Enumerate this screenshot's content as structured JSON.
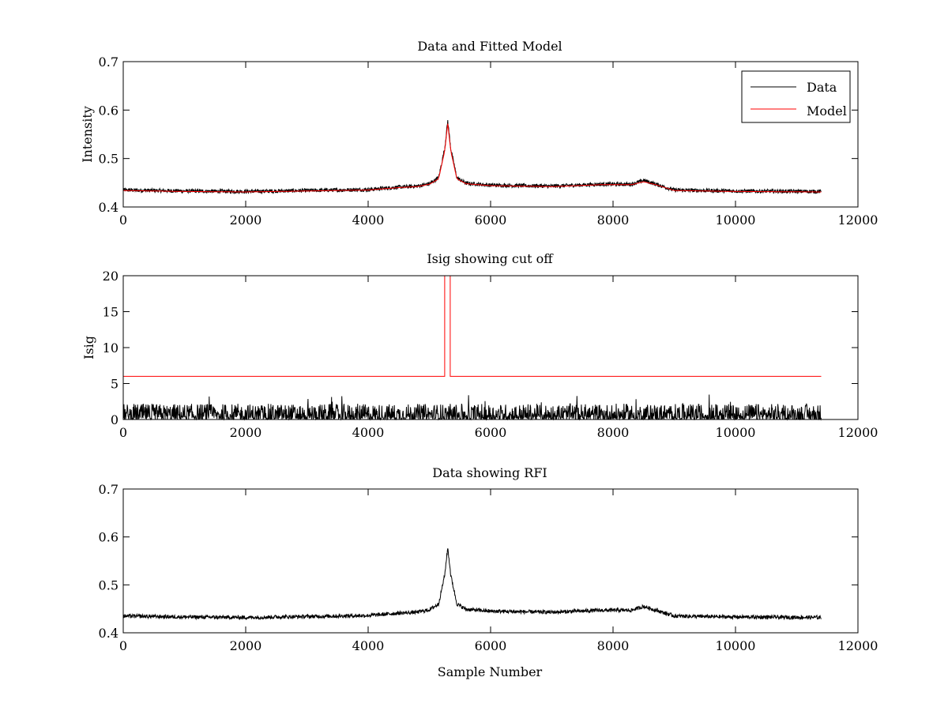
{
  "colors": {
    "data": "#000000",
    "model": "#ff0000",
    "background": "#ffffff",
    "axes": "#000000"
  },
  "chart_data": [
    {
      "type": "line",
      "title": "Data and Fitted Model",
      "xlabel": "",
      "ylabel": "Intensity",
      "xlim": [
        0,
        12000
      ],
      "ylim": [
        0.4,
        0.7
      ],
      "xticks": [
        0,
        2000,
        4000,
        6000,
        8000,
        10000,
        12000
      ],
      "xtick_labels": [
        "0",
        "2000",
        "4000",
        "6000",
        "8000",
        "10000",
        "12000"
      ],
      "yticks": [
        0.4,
        0.5,
        0.6,
        0.7
      ],
      "ytick_labels": [
        "0.4",
        "0.5",
        "0.6",
        "0.7"
      ],
      "legend": {
        "position": "top-right",
        "entries": [
          "Data",
          "Model"
        ]
      },
      "series": [
        {
          "name": "Data",
          "color": "#000000",
          "noise": 0.004,
          "x": [
            0,
            1000,
            2000,
            3000,
            4000,
            4500,
            4800,
            5000,
            5150,
            5250,
            5300,
            5350,
            5450,
            5600,
            5800,
            6000,
            7000,
            7800,
            8300,
            8500,
            8700,
            9000,
            10000,
            11400
          ],
          "values": [
            0.435,
            0.433,
            0.432,
            0.434,
            0.436,
            0.441,
            0.443,
            0.448,
            0.46,
            0.52,
            0.578,
            0.52,
            0.46,
            0.449,
            0.447,
            0.445,
            0.443,
            0.447,
            0.447,
            0.455,
            0.447,
            0.435,
            0.433,
            0.432
          ]
        },
        {
          "name": "Model",
          "color": "#ff0000",
          "noise": 0,
          "x": [
            0,
            1000,
            2000,
            3000,
            4000,
            4500,
            4800,
            5000,
            5150,
            5250,
            5300,
            5350,
            5450,
            5600,
            5800,
            6000,
            7000,
            7800,
            8300,
            8500,
            8700,
            9000,
            10000,
            11400
          ],
          "values": [
            0.434,
            0.432,
            0.431,
            0.433,
            0.435,
            0.44,
            0.442,
            0.447,
            0.458,
            0.515,
            0.572,
            0.515,
            0.458,
            0.448,
            0.446,
            0.444,
            0.442,
            0.446,
            0.446,
            0.452,
            0.446,
            0.434,
            0.432,
            0.431
          ]
        }
      ]
    },
    {
      "type": "line",
      "title": "Isig showing cut off",
      "xlabel": "",
      "ylabel": "Isig",
      "xlim": [
        0,
        12000
      ],
      "ylim": [
        0,
        20
      ],
      "xticks": [
        0,
        2000,
        4000,
        6000,
        8000,
        10000,
        12000
      ],
      "xtick_labels": [
        "0",
        "2000",
        "4000",
        "6000",
        "8000",
        "10000",
        "12000"
      ],
      "yticks": [
        0,
        5,
        10,
        15,
        20
      ],
      "ytick_labels": [
        "0",
        "5",
        "10",
        "15",
        "20"
      ],
      "series": [
        {
          "name": "Isig",
          "color": "#000000",
          "style": "spiky",
          "x": [
            0,
            11400
          ],
          "values": [
            0.8,
            0.8
          ],
          "spike_max": 3.5
        },
        {
          "name": "Cut off",
          "color": "#ff0000",
          "style": "step",
          "x": [
            0,
            5250,
            5250,
            5340,
            5340,
            11400
          ],
          "values": [
            6,
            6,
            20,
            20,
            6,
            6
          ]
        }
      ]
    },
    {
      "type": "line",
      "title": "Data showing RFI",
      "xlabel": "Sample Number",
      "ylabel": "",
      "xlim": [
        0,
        12000
      ],
      "ylim": [
        0.4,
        0.7
      ],
      "xticks": [
        0,
        2000,
        4000,
        6000,
        8000,
        10000,
        12000
      ],
      "xtick_labels": [
        "0",
        "2000",
        "4000",
        "6000",
        "8000",
        "10000",
        "12000"
      ],
      "yticks": [
        0.4,
        0.5,
        0.6,
        0.7
      ],
      "ytick_labels": [
        "0.4",
        "0.5",
        "0.6",
        "0.7"
      ],
      "series": [
        {
          "name": "Data",
          "color": "#000000",
          "noise": 0.004,
          "x": [
            0,
            1000,
            2000,
            3000,
            4000,
            4500,
            4800,
            5000,
            5150,
            5250,
            5300,
            5350,
            5450,
            5600,
            5800,
            6000,
            7000,
            7800,
            8300,
            8500,
            8700,
            9000,
            10000,
            11400
          ],
          "values": [
            0.435,
            0.433,
            0.432,
            0.434,
            0.436,
            0.441,
            0.443,
            0.448,
            0.46,
            0.52,
            0.578,
            0.52,
            0.46,
            0.449,
            0.447,
            0.445,
            0.443,
            0.447,
            0.447,
            0.455,
            0.447,
            0.435,
            0.433,
            0.432
          ]
        }
      ]
    }
  ]
}
